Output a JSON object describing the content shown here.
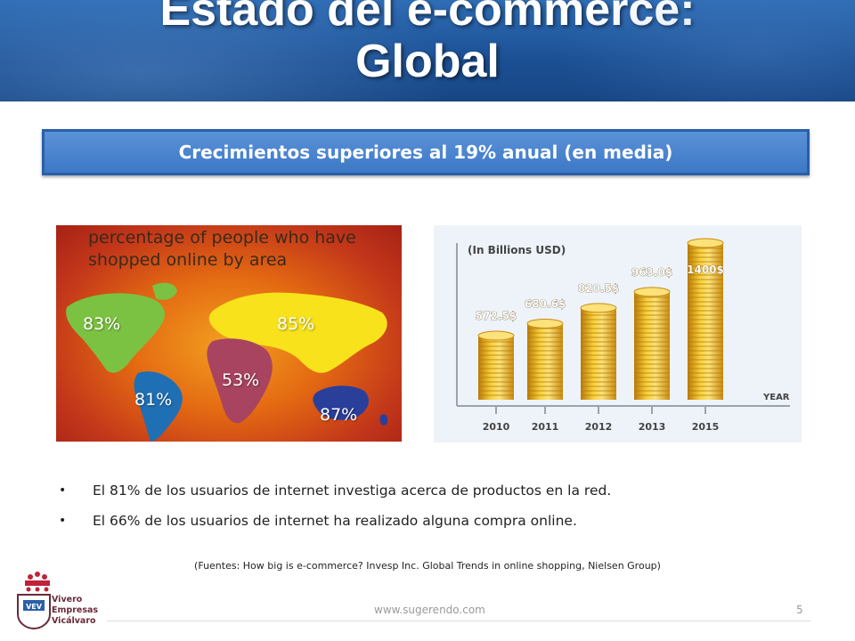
{
  "slide": {
    "title_line1": "Estado del e-commerce:",
    "title_line2": "Global",
    "subtitle": "Crecimientos superiores al 19% anual (en media)"
  },
  "map": {
    "heading_line1": "percentage of people who have",
    "heading_line2": "shopped online by area",
    "regions": [
      {
        "name": "North America",
        "value": "83%"
      },
      {
        "name": "South America",
        "value": "81%"
      },
      {
        "name": "Africa",
        "value": "53%"
      },
      {
        "name": "Eurasia",
        "value": "85%"
      },
      {
        "name": "Oceania",
        "value": "87%"
      }
    ],
    "colors": {
      "north_america": "#7cc242",
      "south_america": "#1f6fb5",
      "africa": "#a84460",
      "eurasia": "#f7e21c",
      "oceania": "#2a3f9a"
    }
  },
  "chart_data": {
    "type": "bar",
    "unit_label": "(In Billions USD)",
    "x_axis_label": "YEAR",
    "categories": [
      "2010",
      "2011",
      "2012",
      "2013",
      "2015"
    ],
    "values": [
      572.5,
      680.6,
      820.5,
      963.0,
      1400
    ],
    "value_labels": [
      "572.5$",
      "680.6$",
      "820.5$",
      "963.0$",
      "1400$"
    ],
    "ylim": [
      0,
      1400
    ],
    "bar_style": "stacked gold coins",
    "color": "#f2b520"
  },
  "bullets": [
    "El 81% de los usuarios de internet investiga acerca de productos en la red.",
    "El 66% de los usuarios de internet ha realizado alguna compra online."
  ],
  "sources": "(Fuentes: How big is e-commerce? Invesp Inc.  Global Trends in online shopping, Nielsen Group)",
  "footer": {
    "url": "www.sugerendo.com",
    "page": "5"
  },
  "logo": {
    "badge": "VEV",
    "lines": [
      "Vivero",
      "Empresas",
      "Vicálvaro"
    ]
  }
}
